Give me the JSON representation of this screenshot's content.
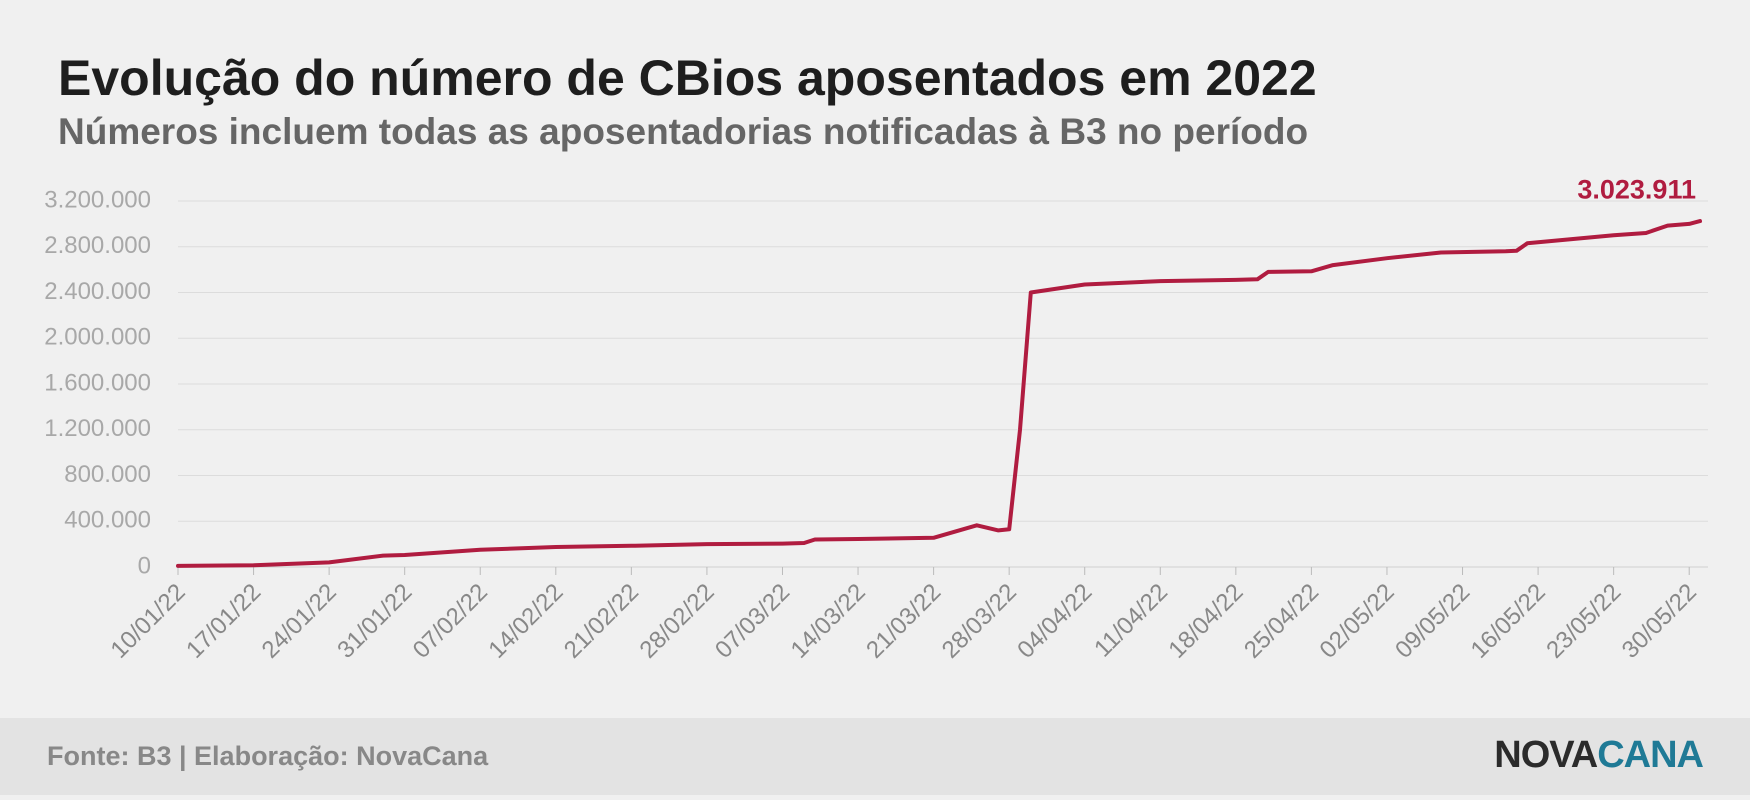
{
  "chart_data": {
    "type": "line",
    "title": "Evolução do número de CBios aposentados em 2022",
    "subtitle": "Números incluem todas as aposentadorias notificadas à B3 no período",
    "x": [
      "10/01/22",
      "17/01/22",
      "24/01/22",
      "29/01/22",
      "31/01/22",
      "07/02/22",
      "14/02/22",
      "21/02/22",
      "28/02/22",
      "07/03/22",
      "09/03/22",
      "10/03/22",
      "14/03/22",
      "21/03/22",
      "25/03/22",
      "27/03/22",
      "28/03/22",
      "29/03/22",
      "30/03/22",
      "04/04/22",
      "11/04/22",
      "18/04/22",
      "20/04/22",
      "21/04/22",
      "25/04/22",
      "27/04/22",
      "02/05/22",
      "07/05/22",
      "13/05/22",
      "14/05/22",
      "15/05/22",
      "23/05/22",
      "26/05/22",
      "28/05/22",
      "30/05/22",
      "31/05/22"
    ],
    "series": [
      {
        "name": "CBios aposentados",
        "color": "#b01c40",
        "values": [
          10000,
          15000,
          40000,
          100000,
          105000,
          150000,
          175000,
          185000,
          200000,
          205000,
          210000,
          240000,
          245000,
          255000,
          365000,
          320000,
          330000,
          1200000,
          2400000,
          2470000,
          2500000,
          2510000,
          2515000,
          2580000,
          2585000,
          2640000,
          2700000,
          2750000,
          2760000,
          2765000,
          2830000,
          2900000,
          2920000,
          2985000,
          3000000,
          3023911
        ],
        "value_labels": [
          null,
          null,
          null,
          null,
          null,
          null,
          null,
          null,
          null,
          null,
          null,
          null,
          null,
          null,
          null,
          null,
          null,
          null,
          null,
          null,
          null,
          null,
          null,
          null,
          null,
          null,
          null,
          null,
          null,
          null,
          null,
          null,
          null,
          null,
          null,
          "3.023.911"
        ]
      }
    ],
    "xlim": [
      "10/01/22",
      "31/05/22"
    ],
    "xticks": [
      "10/01/22",
      "17/01/22",
      "24/01/22",
      "31/01/22",
      "07/02/22",
      "14/02/22",
      "21/02/22",
      "28/02/22",
      "07/03/22",
      "14/03/22",
      "21/03/22",
      "28/03/22",
      "04/04/22",
      "11/04/22",
      "18/04/22",
      "25/04/22",
      "02/05/22",
      "09/05/22",
      "16/05/22",
      "23/05/22",
      "30/05/22"
    ],
    "ylim": [
      0,
      3200000
    ],
    "yticks": [
      0,
      {
        "value": 400000,
        "label": "400.000"
      },
      {
        "value": 800000,
        "label": "800.000"
      },
      {
        "value": 1200000,
        "label": "1.200.000"
      },
      {
        "value": 1600000,
        "label": "1.600.000"
      },
      {
        "value": 2000000,
        "label": "2.000.000"
      },
      {
        "value": 2400000,
        "label": "2.400.000"
      },
      {
        "value": 2800000,
        "label": "2.800.000"
      },
      {
        "value": 3200000,
        "label": "3.200.000"
      }
    ],
    "grid": true
  },
  "footer": {
    "source": "Fonte: B3 | Elaboração: NovaCana",
    "logo_part1": "NOVA",
    "logo_part2": "CANA"
  }
}
